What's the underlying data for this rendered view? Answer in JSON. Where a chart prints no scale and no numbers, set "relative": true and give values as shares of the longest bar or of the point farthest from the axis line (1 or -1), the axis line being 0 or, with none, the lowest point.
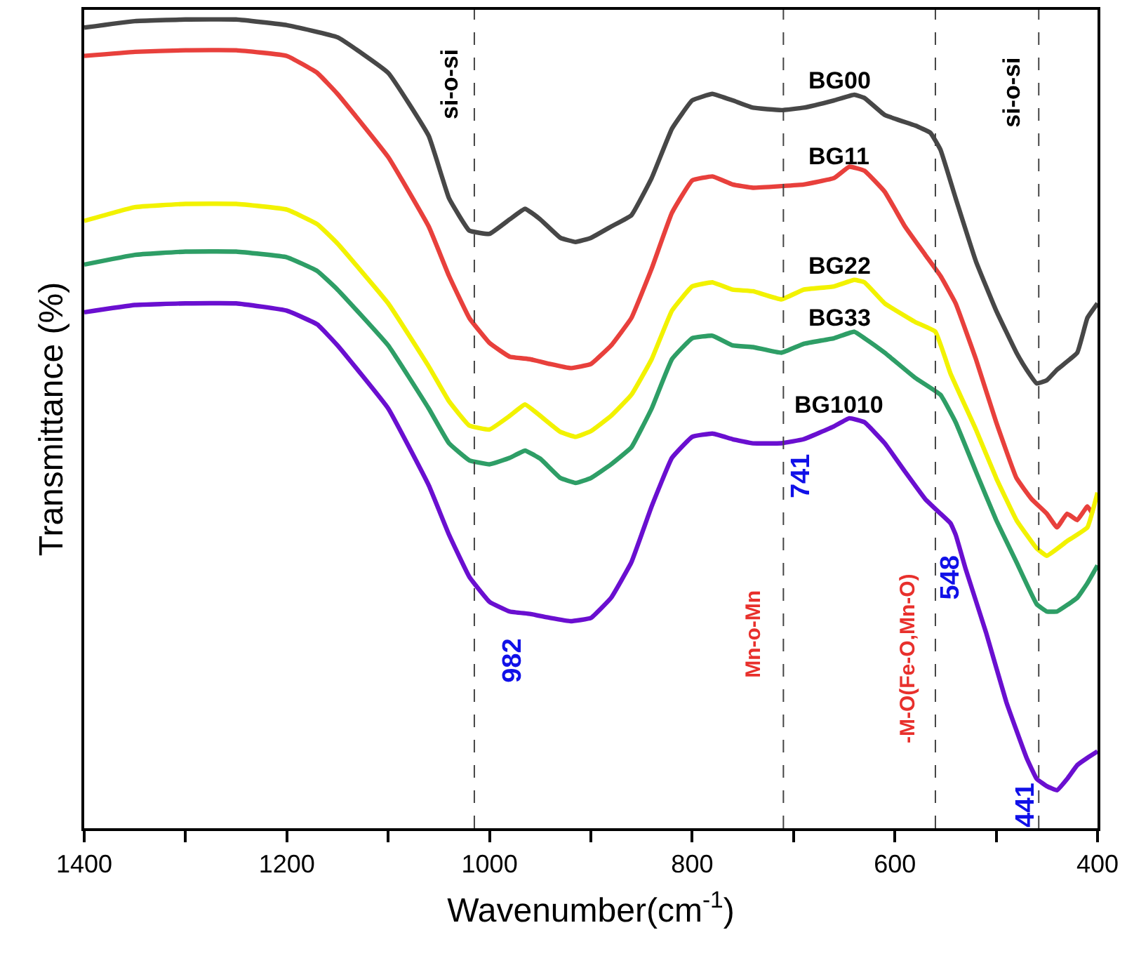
{
  "chart_data": {
    "type": "line",
    "relative": true,
    "xlabel": "Wavenumber(cm$^{-1}$)",
    "ylabel": "Transmittance (%)",
    "xlim": [
      1400,
      400
    ],
    "xticks": [
      1400,
      {
        "value": 1300,
        "label": null
      },
      1200,
      {
        "value": 1100,
        "label": null
      },
      1000,
      {
        "value": 900,
        "label": null
      },
      800,
      {
        "value": 700,
        "label": null
      },
      600,
      {
        "value": 500,
        "label": null
      },
      400
    ],
    "tick_labels": "x",
    "legend": false,
    "marker": "none",
    "line_style": "solid",
    "series": [
      {
        "name": "BG00",
        "color": "#474747",
        "x": [
          1400,
          1350,
          1300,
          1250,
          1200,
          1150,
          1100,
          1060,
          1040,
          1020,
          1000,
          980,
          965,
          950,
          930,
          915,
          900,
          880,
          860,
          840,
          820,
          800,
          780,
          760,
          740,
          712,
          690,
          660,
          640,
          630,
          610,
          580,
          565,
          555,
          540,
          520,
          500,
          480,
          470,
          460,
          450,
          440,
          420,
          410,
          400
        ],
        "values": [
          0.99,
          0.998,
          1.0,
          1.0,
          0.993,
          0.978,
          0.934,
          0.856,
          0.779,
          0.739,
          0.735,
          0.753,
          0.766,
          0.753,
          0.73,
          0.725,
          0.73,
          0.744,
          0.758,
          0.804,
          0.865,
          0.9,
          0.908,
          0.9,
          0.891,
          0.888,
          0.891,
          0.9,
          0.907,
          0.903,
          0.882,
          0.869,
          0.86,
          0.839,
          0.779,
          0.701,
          0.64,
          0.588,
          0.567,
          0.55,
          0.554,
          0.567,
          0.588,
          0.631,
          0.649
        ]
      },
      {
        "name": "BG11",
        "color": "#e8403c",
        "x": [
          1400,
          1350,
          1300,
          1250,
          1200,
          1170,
          1150,
          1100,
          1060,
          1040,
          1020,
          1000,
          980,
          960,
          940,
          920,
          900,
          880,
          860,
          840,
          820,
          800,
          780,
          760,
          740,
          712,
          690,
          660,
          645,
          630,
          610,
          590,
          570,
          555,
          540,
          520,
          500,
          480,
          465,
          450,
          440,
          430,
          420,
          410,
          405
        ],
        "values": [
          0.955,
          0.96,
          0.962,
          0.962,
          0.955,
          0.934,
          0.908,
          0.83,
          0.744,
          0.683,
          0.631,
          0.6,
          0.583,
          0.58,
          0.574,
          0.569,
          0.574,
          0.597,
          0.631,
          0.692,
          0.761,
          0.801,
          0.806,
          0.796,
          0.792,
          0.794,
          0.796,
          0.804,
          0.818,
          0.813,
          0.787,
          0.744,
          0.709,
          0.683,
          0.649,
          0.58,
          0.502,
          0.433,
          0.407,
          0.389,
          0.372,
          0.389,
          0.381,
          0.398,
          0.389
        ]
      },
      {
        "name": "BG22",
        "color": "#f2f200",
        "x": [
          1400,
          1350,
          1300,
          1250,
          1200,
          1170,
          1150,
          1100,
          1060,
          1040,
          1020,
          1000,
          980,
          965,
          950,
          930,
          915,
          900,
          880,
          860,
          840,
          820,
          800,
          780,
          760,
          740,
          712,
          690,
          660,
          640,
          630,
          610,
          580,
          560,
          545,
          520,
          500,
          480,
          460,
          450,
          430,
          410,
          400
        ],
        "values": [
          0.751,
          0.768,
          0.772,
          0.772,
          0.765,
          0.747,
          0.723,
          0.649,
          0.571,
          0.528,
          0.498,
          0.493,
          0.51,
          0.524,
          0.51,
          0.49,
          0.484,
          0.491,
          0.51,
          0.536,
          0.58,
          0.64,
          0.67,
          0.675,
          0.666,
          0.664,
          0.654,
          0.666,
          0.67,
          0.678,
          0.675,
          0.649,
          0.626,
          0.614,
          0.562,
          0.493,
          0.433,
          0.381,
          0.346,
          0.337,
          0.355,
          0.372,
          0.415
        ]
      },
      {
        "name": "BG33",
        "color": "#2e9e66",
        "x": [
          1400,
          1350,
          1300,
          1250,
          1200,
          1170,
          1150,
          1100,
          1060,
          1040,
          1020,
          1000,
          980,
          965,
          950,
          930,
          915,
          900,
          880,
          860,
          840,
          820,
          800,
          780,
          760,
          740,
          712,
          690,
          660,
          640,
          630,
          610,
          580,
          555,
          540,
          520,
          500,
          480,
          460,
          450,
          440,
          420,
          410,
          400
        ],
        "values": [
          0.697,
          0.709,
          0.713,
          0.713,
          0.706,
          0.689,
          0.666,
          0.597,
          0.519,
          0.476,
          0.455,
          0.45,
          0.458,
          0.467,
          0.457,
          0.433,
          0.427,
          0.433,
          0.45,
          0.471,
          0.519,
          0.58,
          0.606,
          0.609,
          0.597,
          0.595,
          0.588,
          0.599,
          0.606,
          0.614,
          0.606,
          0.588,
          0.557,
          0.536,
          0.502,
          0.441,
          0.381,
          0.329,
          0.277,
          0.268,
          0.268,
          0.285,
          0.303,
          0.325
        ]
      },
      {
        "name": "BG1010",
        "color": "#6a0fd0",
        "x": [
          1400,
          1350,
          1300,
          1250,
          1200,
          1170,
          1150,
          1100,
          1060,
          1040,
          1020,
          1000,
          980,
          960,
          940,
          920,
          900,
          880,
          860,
          840,
          820,
          800,
          780,
          760,
          740,
          712,
          690,
          660,
          645,
          630,
          610,
          590,
          570,
          555,
          545,
          540,
          530,
          510,
          490,
          470,
          460,
          450,
          440,
          430,
          420,
          410,
          400
        ],
        "values": [
          0.638,
          0.647,
          0.649,
          0.649,
          0.64,
          0.623,
          0.597,
          0.519,
          0.424,
          0.363,
          0.311,
          0.28,
          0.268,
          0.265,
          0.26,
          0.256,
          0.26,
          0.285,
          0.329,
          0.398,
          0.458,
          0.484,
          0.488,
          0.481,
          0.476,
          0.476,
          0.481,
          0.497,
          0.507,
          0.502,
          0.476,
          0.441,
          0.407,
          0.389,
          0.377,
          0.363,
          0.32,
          0.242,
          0.156,
          0.087,
          0.061,
          0.052,
          0.047,
          0.061,
          0.078,
          0.087,
          0.095
        ]
      }
    ],
    "ref_lines": [
      {
        "axis": "x",
        "value": 1015,
        "line_style": "dashed",
        "color": "#444444"
      },
      {
        "axis": "x",
        "value": 710,
        "line_style": "dashed",
        "color": "#444444"
      },
      {
        "axis": "x",
        "value": 560,
        "line_style": "dashed",
        "color": "#444444"
      },
      {
        "axis": "x",
        "value": 458,
        "line_style": "dashed",
        "color": "#444444"
      }
    ],
    "annotations": [
      {
        "text": "si-o-si",
        "x": 1015,
        "y": 0.92
      },
      {
        "text": "si-o-si",
        "x": 458,
        "y": 0.91
      },
      {
        "text": "Mn-o-Mn",
        "x": 710,
        "y": 0.24
      },
      {
        "text": "-M-O(Fe-O,Mn-O)",
        "x": 560,
        "y": 0.21
      },
      {
        "text": "982",
        "x": 982,
        "y": 0.268
      },
      {
        "text": "741",
        "x": 741,
        "y": 0.477
      },
      {
        "text": "548",
        "x": 548,
        "y": 0.38
      },
      {
        "text": "441",
        "x": 441,
        "y": 0.047
      }
    ]
  }
}
